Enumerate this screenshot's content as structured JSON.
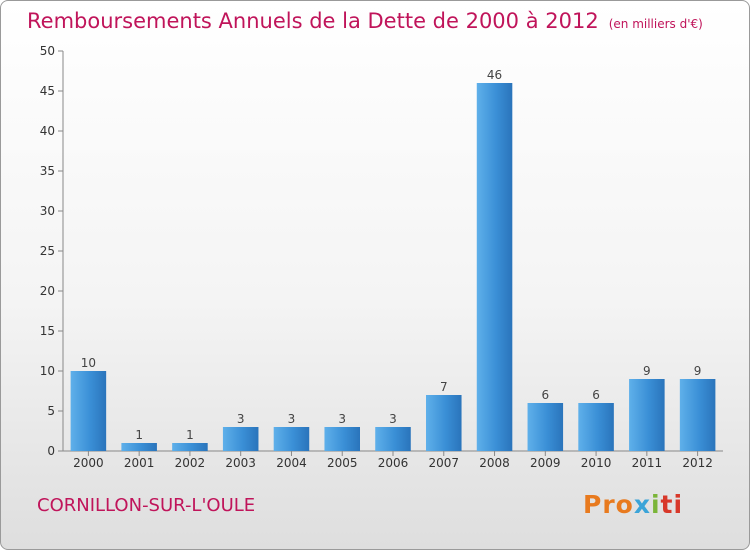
{
  "title": "Remboursements Annuels de la Dette de 2000 à 2012",
  "unit_label": "(en milliers d'€)",
  "commune": "CORNILLON-SUR-L'OULE",
  "logo": {
    "p1": "Pro",
    "p2": "x",
    "p3": "i",
    "p4": "ti"
  },
  "colors": {
    "bar": "#3a8fd6",
    "title": "#c0145a"
  },
  "chart_data": {
    "type": "bar",
    "title": "Remboursements Annuels de la Dette de 2000 à 2012",
    "xlabel": "",
    "ylabel": "",
    "categories": [
      "2000",
      "2001",
      "2002",
      "2003",
      "2004",
      "2005",
      "2006",
      "2007",
      "2008",
      "2009",
      "2010",
      "2011",
      "2012"
    ],
    "values": [
      10,
      1,
      1,
      3,
      3,
      3,
      3,
      7,
      46,
      6,
      6,
      9,
      9
    ],
    "labels": [
      "10",
      "1",
      "1",
      "3",
      "3",
      "3",
      "3",
      "7",
      "46",
      "6",
      "6",
      "9",
      "9"
    ],
    "ylim": [
      0,
      50
    ],
    "yticks": [
      "0",
      "5",
      "10",
      "15",
      "20",
      "25",
      "30",
      "35",
      "40",
      "45",
      "50"
    ],
    "ytick_values": [
      0,
      5,
      10,
      15,
      20,
      25,
      30,
      35,
      40,
      45,
      50
    ],
    "grid": false,
    "legend": "none"
  }
}
